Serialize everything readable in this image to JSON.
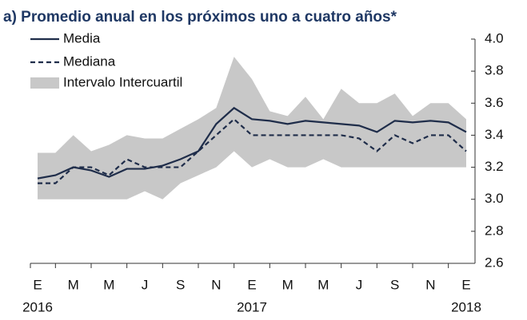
{
  "chart_data": {
    "type": "line",
    "title": "a) Promedio anual en los próximos uno a cuatro años*",
    "categories": [
      "E",
      null,
      "M",
      null,
      "M",
      null,
      "J",
      null,
      "S",
      null,
      "N",
      null,
      "E",
      null,
      "M",
      null,
      "M",
      null,
      "J",
      null,
      "S",
      null,
      "N",
      null,
      "E"
    ],
    "year_labels": [
      "2016",
      "2017",
      "2018"
    ],
    "series": [
      {
        "name": "Media",
        "color": "#1f2d4a",
        "dash": "solid",
        "values": [
          3.13,
          3.15,
          3.2,
          3.18,
          3.14,
          3.19,
          3.19,
          3.21,
          3.25,
          3.3,
          3.47,
          3.57,
          3.5,
          3.49,
          3.47,
          3.49,
          3.48,
          3.47,
          3.46,
          3.42,
          3.49,
          3.48,
          3.49,
          3.48,
          3.42
        ]
      },
      {
        "name": "Mediana",
        "color": "#1f2d4a",
        "dash": "dashed",
        "values": [
          3.1,
          3.1,
          3.2,
          3.2,
          3.15,
          3.25,
          3.2,
          3.2,
          3.2,
          3.3,
          3.4,
          3.5,
          3.4,
          3.4,
          3.4,
          3.4,
          3.4,
          3.4,
          3.38,
          3.3,
          3.4,
          3.35,
          3.4,
          3.4,
          3.3
        ]
      },
      {
        "name": "Intervalo Intercuartil",
        "color": "#c8c8c8",
        "kind": "band",
        "low": [
          3.0,
          3.0,
          3.0,
          3.0,
          3.0,
          3.0,
          3.05,
          3.0,
          3.1,
          3.15,
          3.2,
          3.3,
          3.2,
          3.25,
          3.2,
          3.2,
          3.25,
          3.2,
          3.2,
          3.2,
          3.2,
          3.2,
          3.2,
          3.2,
          3.2
        ],
        "high": [
          3.29,
          3.29,
          3.4,
          3.3,
          3.34,
          3.4,
          3.38,
          3.38,
          3.44,
          3.5,
          3.57,
          3.89,
          3.75,
          3.55,
          3.52,
          3.64,
          3.5,
          3.69,
          3.6,
          3.6,
          3.66,
          3.52,
          3.6,
          3.6,
          3.5
        ]
      }
    ],
    "ylim": [
      2.6,
      4.0
    ],
    "yticks": [
      {
        "value": 2.6,
        "label": "2.6"
      },
      {
        "value": 2.8,
        "label": "2.8"
      },
      {
        "value": 3.0,
        "label": "3.0"
      },
      {
        "value": 3.2,
        "label": "3.2"
      },
      {
        "value": 3.4,
        "label": "3.4"
      },
      {
        "value": 3.6,
        "label": "3.6"
      },
      {
        "value": 3.8,
        "label": "3.8"
      },
      {
        "value": 4.0,
        "label": "4.0"
      }
    ],
    "y_axis_side": "right",
    "legend": "top-left",
    "grid": false
  }
}
